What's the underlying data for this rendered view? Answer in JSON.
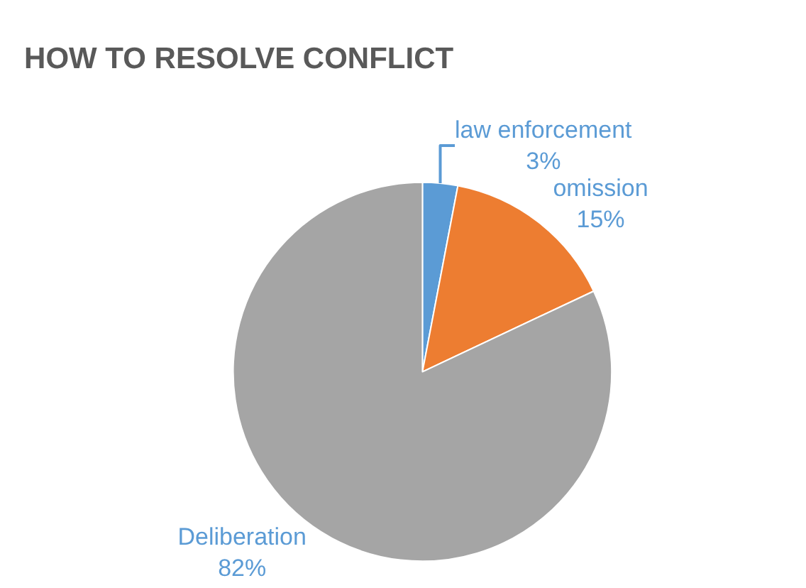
{
  "chart_data": {
    "type": "pie",
    "title": "HOW TO RESOLVE CONFLICT",
    "categories": [
      "law enforcement",
      "omission",
      "Deliberation"
    ],
    "values": [
      3,
      15,
      82
    ],
    "value_labels": [
      "3%",
      "15%",
      "82%"
    ],
    "colors": [
      "#5b9bd5",
      "#ed7d31",
      "#a5a5a5"
    ],
    "legend": false
  }
}
